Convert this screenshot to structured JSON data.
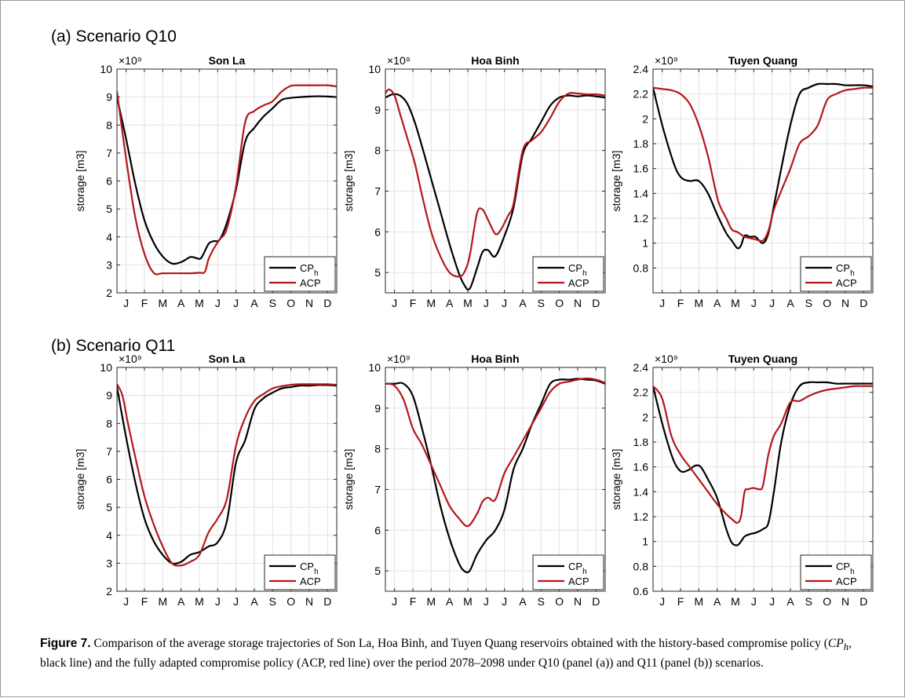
{
  "panels": [
    {
      "label": "(a) Scenario Q10"
    },
    {
      "label": "(b) Scenario Q11"
    }
  ],
  "colors": {
    "cph": "#000000",
    "acp": "#b3171b",
    "grid": "#e2e2e2",
    "axis": "#262626"
  },
  "caption": {
    "label": "Figure 7.",
    "text": " Comparison of the average storage trajectories of Son La, Hoa Binh, and Tuyen Quang reservoirs obtained with the history-based compromise policy (",
    "policy_main": "CP",
    "policy_sub": "h",
    "text_2": ", black line) and the fully adapted compromise policy (ACP, red line) over the period 2078–2098 under Q10 (panel (a)) and Q11 (panel (b)) scenarios."
  },
  "chart_data": [
    {
      "type": "line",
      "panel": "(a) Scenario Q10",
      "title": "Son La",
      "ylabel": "storage [m3]",
      "y_exponent": "×10⁹",
      "ylim": [
        2,
        10
      ],
      "yticks": [
        2,
        3,
        4,
        5,
        6,
        7,
        8,
        9,
        10
      ],
      "ytick_labels": [
        "2",
        "3",
        "4",
        "5",
        "6",
        "7",
        "8",
        "9",
        "10"
      ],
      "xlim": [
        0,
        12
      ],
      "xticks": [
        "J",
        "F",
        "M",
        "A",
        "M",
        "J",
        "J",
        "A",
        "S",
        "O",
        "N",
        "D"
      ],
      "grid": true,
      "legend": "bottom-right",
      "series": [
        {
          "name": "CP_h",
          "label_main": "CP",
          "label_sub": "h",
          "color": "#000000",
          "x": [
            0,
            0.5,
            1,
            1.5,
            2,
            2.5,
            3,
            3.5,
            4,
            4.3,
            4.6,
            5,
            5.3,
            5.6,
            6,
            6.5,
            7,
            7.5,
            8,
            8.5,
            9,
            9.5,
            10,
            10.5,
            11,
            11.5,
            12
          ],
          "y": [
            9.0,
            7.5,
            5.9,
            4.6,
            3.8,
            3.3,
            3.05,
            3.1,
            3.28,
            3.25,
            3.25,
            3.75,
            3.85,
            3.9,
            4.5,
            5.7,
            7.4,
            7.9,
            8.3,
            8.6,
            8.9,
            8.97,
            9.0,
            9.02,
            9.03,
            9.02,
            9.0
          ]
        },
        {
          "name": "ACP",
          "label_main": "ACP",
          "label_sub": "",
          "color": "#b3171b",
          "x": [
            0,
            0.5,
            1,
            1.5,
            2,
            2.5,
            3,
            3.5,
            4,
            4.5,
            4.8,
            5,
            5.3,
            5.6,
            6,
            6.5,
            7,
            7.5,
            8,
            8.5,
            9,
            9.5,
            10,
            10.5,
            11,
            11.5,
            12
          ],
          "y": [
            9.2,
            6.8,
            4.7,
            3.4,
            2.72,
            2.7,
            2.7,
            2.7,
            2.7,
            2.72,
            2.75,
            3.2,
            3.6,
            3.9,
            4.3,
            5.8,
            8.1,
            8.5,
            8.7,
            8.85,
            9.2,
            9.4,
            9.42,
            9.42,
            9.42,
            9.42,
            9.38
          ]
        }
      ]
    },
    {
      "type": "line",
      "panel": "(a) Scenario Q10",
      "title": "Hoa Binh",
      "ylabel": "storage [m3]",
      "y_exponent": "×10⁹",
      "ylim": [
        4.5,
        10
      ],
      "yticks": [
        5,
        6,
        7,
        8,
        9,
        10
      ],
      "ytick_labels": [
        "5",
        "6",
        "7",
        "8",
        "9",
        "10"
      ],
      "xlim": [
        0,
        12
      ],
      "xticks": [
        "J",
        "F",
        "M",
        "A",
        "M",
        "J",
        "J",
        "A",
        "S",
        "O",
        "N",
        "D"
      ],
      "grid": true,
      "legend": "bottom-right",
      "series": [
        {
          "name": "CP_h",
          "label_main": "CP",
          "label_sub": "h",
          "color": "#000000",
          "x": [
            0,
            0.4,
            0.8,
            1.2,
            1.6,
            2,
            2.5,
            3,
            3.5,
            4,
            4.3,
            4.6,
            5,
            5.3,
            5.6,
            6,
            6.5,
            7,
            7.5,
            8,
            8.5,
            9,
            9.5,
            10,
            10.5,
            11,
            11.5,
            12
          ],
          "y": [
            9.3,
            9.38,
            9.35,
            9.15,
            8.7,
            8.1,
            7.3,
            6.5,
            5.7,
            5.0,
            4.7,
            4.6,
            5.1,
            5.5,
            5.55,
            5.4,
            5.9,
            6.6,
            7.9,
            8.3,
            8.7,
            9.1,
            9.3,
            9.35,
            9.33,
            9.35,
            9.33,
            9.3
          ]
        },
        {
          "name": "ACP",
          "label_main": "ACP",
          "label_sub": "",
          "color": "#b3171b",
          "x": [
            0,
            0.2,
            0.5,
            0.8,
            1.2,
            1.6,
            2,
            2.5,
            3,
            3.5,
            4,
            4.3,
            4.6,
            5,
            5.3,
            5.6,
            6,
            6.3,
            6.7,
            7,
            7.5,
            8,
            8.5,
            9,
            9.5,
            10,
            10.5,
            11,
            11.5,
            12
          ],
          "y": [
            9.4,
            9.5,
            9.35,
            8.9,
            8.3,
            7.7,
            6.9,
            6.0,
            5.4,
            5.0,
            4.9,
            5.0,
            5.4,
            6.45,
            6.55,
            6.3,
            5.95,
            6.05,
            6.4,
            6.7,
            8.0,
            8.25,
            8.45,
            8.8,
            9.2,
            9.4,
            9.4,
            9.38,
            9.38,
            9.35
          ]
        }
      ]
    },
    {
      "type": "line",
      "panel": "(a) Scenario Q10",
      "title": "Tuyen Quang",
      "ylabel": "storage [m3]",
      "y_exponent": "×10⁹",
      "ylim": [
        0.6,
        2.4
      ],
      "yticks": [
        0.8,
        1.0,
        1.2,
        1.4,
        1.6,
        1.8,
        2.0,
        2.2,
        2.4
      ],
      "ytick_labels": [
        "0.8",
        "1",
        "1.2",
        "1.4",
        "1.6",
        "1.8",
        "2",
        "2.2",
        "2.4"
      ],
      "xlim": [
        0,
        12
      ],
      "xticks": [
        "J",
        "F",
        "M",
        "A",
        "M",
        "J",
        "J",
        "A",
        "S",
        "O",
        "N",
        "D"
      ],
      "grid": true,
      "legend": "bottom-right",
      "series": [
        {
          "name": "CP_h",
          "label_main": "CP",
          "label_sub": "h",
          "color": "#000000",
          "x": [
            0,
            0.5,
            1,
            1.3,
            1.6,
            2,
            2.5,
            3,
            3.5,
            4,
            4.3,
            4.6,
            4.8,
            5,
            5.3,
            5.6,
            6,
            6.3,
            6.6,
            7,
            7.5,
            8,
            8.5,
            9,
            9.5,
            10,
            10.5,
            11,
            11.5,
            12
          ],
          "y": [
            2.25,
            1.95,
            1.7,
            1.58,
            1.52,
            1.5,
            1.5,
            1.4,
            1.23,
            1.08,
            1.02,
            0.96,
            0.98,
            1.06,
            1.05,
            1.05,
            1.0,
            1.08,
            1.3,
            1.6,
            1.95,
            2.2,
            2.25,
            2.28,
            2.28,
            2.28,
            2.27,
            2.27,
            2.27,
            2.26
          ]
        },
        {
          "name": "ACP",
          "label_main": "ACP",
          "label_sub": "",
          "color": "#b3171b",
          "x": [
            0,
            0.5,
            1,
            1.5,
            2,
            2.5,
            3,
            3.3,
            3.6,
            4,
            4.3,
            4.6,
            4.8,
            5,
            5.3,
            5.6,
            6,
            6.3,
            6.6,
            7,
            7.5,
            8,
            8.5,
            9,
            9.5,
            10,
            10.5,
            11,
            11.5,
            12
          ],
          "y": [
            2.25,
            2.24,
            2.23,
            2.2,
            2.12,
            1.95,
            1.7,
            1.5,
            1.32,
            1.2,
            1.11,
            1.09,
            1.07,
            1.05,
            1.04,
            1.03,
            1.02,
            1.1,
            1.27,
            1.42,
            1.6,
            1.8,
            1.86,
            1.95,
            2.15,
            2.2,
            2.23,
            2.24,
            2.25,
            2.25
          ]
        }
      ]
    },
    {
      "type": "line",
      "panel": "(b) Scenario Q11",
      "title": "Son La",
      "ylabel": "storage [m3]",
      "y_exponent": "×10⁹",
      "ylim": [
        2,
        10
      ],
      "yticks": [
        2,
        3,
        4,
        5,
        6,
        7,
        8,
        9,
        10
      ],
      "ytick_labels": [
        "2",
        "3",
        "4",
        "5",
        "6",
        "7",
        "8",
        "9",
        "10"
      ],
      "xlim": [
        0,
        12
      ],
      "xticks": [
        "J",
        "F",
        "M",
        "A",
        "M",
        "J",
        "J",
        "A",
        "S",
        "O",
        "N",
        "D"
      ],
      "grid": true,
      "legend": "bottom-right",
      "series": [
        {
          "name": "CP_h",
          "label_main": "CP",
          "label_sub": "h",
          "color": "#000000",
          "x": [
            0,
            0.5,
            1,
            1.5,
            2,
            2.5,
            3,
            3.5,
            4,
            4.5,
            5,
            5.5,
            6,
            6.5,
            7,
            7.5,
            8,
            8.5,
            9,
            9.5,
            10,
            10.5,
            11,
            11.5,
            12
          ],
          "y": [
            9.3,
            7.5,
            5.9,
            4.6,
            3.8,
            3.3,
            3.0,
            3.05,
            3.3,
            3.4,
            3.6,
            3.75,
            4.5,
            6.6,
            7.4,
            8.5,
            8.9,
            9.1,
            9.25,
            9.3,
            9.35,
            9.35,
            9.37,
            9.37,
            9.35
          ]
        },
        {
          "name": "ACP",
          "label_main": "ACP",
          "label_sub": "",
          "color": "#b3171b",
          "x": [
            0,
            0.3,
            0.6,
            1,
            1.5,
            2,
            2.5,
            3,
            3.5,
            4,
            4.5,
            5,
            5.5,
            6,
            6.5,
            7,
            7.5,
            8,
            8.5,
            9,
            9.5,
            10,
            10.5,
            11,
            11.5,
            12
          ],
          "y": [
            9.4,
            9.0,
            8.0,
            6.8,
            5.4,
            4.4,
            3.6,
            3.0,
            2.92,
            3.05,
            3.3,
            4.1,
            4.6,
            5.3,
            7.2,
            8.2,
            8.8,
            9.05,
            9.25,
            9.33,
            9.38,
            9.4,
            9.4,
            9.4,
            9.4,
            9.38
          ]
        }
      ]
    },
    {
      "type": "line",
      "panel": "(b) Scenario Q11",
      "title": "Hoa Binh",
      "ylabel": "storage [m3]",
      "y_exponent": "×10⁹",
      "ylim": [
        4.5,
        10
      ],
      "yticks": [
        5,
        6,
        7,
        8,
        9,
        10
      ],
      "ytick_labels": [
        "5",
        "6",
        "7",
        "8",
        "9",
        "10"
      ],
      "xlim": [
        0,
        12
      ],
      "xticks": [
        "J",
        "F",
        "M",
        "A",
        "M",
        "J",
        "J",
        "A",
        "S",
        "O",
        "N",
        "D"
      ],
      "grid": true,
      "legend": "bottom-right",
      "series": [
        {
          "name": "CP_h",
          "label_main": "CP",
          "label_sub": "h",
          "color": "#000000",
          "x": [
            0,
            0.5,
            1,
            1.5,
            2,
            2.5,
            3,
            3.5,
            4,
            4.3,
            4.6,
            5,
            5.5,
            6,
            6.5,
            7,
            7.5,
            8,
            8.5,
            9,
            9.5,
            10,
            10.5,
            11,
            11.5,
            12
          ],
          "y": [
            9.6,
            9.6,
            9.6,
            9.3,
            8.5,
            7.6,
            6.6,
            5.8,
            5.2,
            5.0,
            5.0,
            5.4,
            5.75,
            6.0,
            6.5,
            7.5,
            8.0,
            8.6,
            9.1,
            9.6,
            9.7,
            9.7,
            9.72,
            9.7,
            9.68,
            9.6
          ]
        },
        {
          "name": "ACP",
          "label_main": "ACP",
          "label_sub": "",
          "color": "#b3171b",
          "x": [
            0,
            0.5,
            1,
            1.5,
            2,
            2.5,
            3,
            3.5,
            4,
            4.5,
            5,
            5.3,
            5.6,
            6,
            6.5,
            7,
            7.5,
            8,
            8.5,
            9,
            9.5,
            10,
            10.5,
            11,
            11.5,
            12
          ],
          "y": [
            9.6,
            9.55,
            9.2,
            8.5,
            8.1,
            7.6,
            7.1,
            6.6,
            6.3,
            6.1,
            6.4,
            6.7,
            6.8,
            6.75,
            7.4,
            7.8,
            8.2,
            8.6,
            9.0,
            9.4,
            9.6,
            9.65,
            9.7,
            9.73,
            9.7,
            9.62
          ]
        }
      ]
    },
    {
      "type": "line",
      "panel": "(b) Scenario Q11",
      "title": "Tuyen Quang",
      "ylabel": "storage [m3]",
      "y_exponent": "×10⁹",
      "ylim": [
        0.6,
        2.4
      ],
      "yticks": [
        0.6,
        0.8,
        1.0,
        1.2,
        1.4,
        1.6,
        1.8,
        2.0,
        2.2,
        2.4
      ],
      "ytick_labels": [
        "0.6",
        "0.8",
        "1",
        "1.2",
        "1.4",
        "1.6",
        "1.8",
        "2",
        "2.2",
        "2.4"
      ],
      "xlim": [
        0,
        12
      ],
      "xticks": [
        "J",
        "F",
        "M",
        "A",
        "M",
        "J",
        "J",
        "A",
        "S",
        "O",
        "N",
        "D"
      ],
      "grid": true,
      "legend": "bottom-right",
      "series": [
        {
          "name": "CP_h",
          "label_main": "CP",
          "label_sub": "h",
          "color": "#000000",
          "x": [
            0,
            0.5,
            1,
            1.3,
            1.6,
            2,
            2.3,
            2.6,
            3,
            3.5,
            4,
            4.3,
            4.6,
            4.8,
            5,
            5.3,
            5.6,
            6,
            6.3,
            6.6,
            7,
            7.5,
            8,
            8.5,
            9,
            9.5,
            10,
            10.5,
            11,
            11.5,
            12
          ],
          "y": [
            2.25,
            1.95,
            1.7,
            1.6,
            1.56,
            1.58,
            1.61,
            1.6,
            1.5,
            1.35,
            1.1,
            0.99,
            0.97,
            1.0,
            1.04,
            1.06,
            1.07,
            1.1,
            1.15,
            1.4,
            1.8,
            2.1,
            2.25,
            2.28,
            2.28,
            2.28,
            2.27,
            2.27,
            2.27,
            2.27,
            2.27
          ]
        },
        {
          "name": "ACP",
          "label_main": "ACP",
          "label_sub": "",
          "color": "#b3171b",
          "x": [
            0,
            0.5,
            1,
            1.5,
            2,
            2.5,
            3,
            3.5,
            4,
            4.3,
            4.6,
            4.8,
            5,
            5.2,
            5.5,
            5.8,
            6,
            6.3,
            6.6,
            7,
            7.5,
            8,
            8.5,
            9,
            9.5,
            10,
            10.5,
            11,
            11.5,
            12
          ],
          "y": [
            2.25,
            2.15,
            1.85,
            1.7,
            1.6,
            1.5,
            1.4,
            1.3,
            1.22,
            1.18,
            1.15,
            1.2,
            1.4,
            1.42,
            1.43,
            1.42,
            1.45,
            1.7,
            1.85,
            1.95,
            2.12,
            2.13,
            2.17,
            2.2,
            2.22,
            2.23,
            2.24,
            2.25,
            2.25,
            2.25
          ]
        }
      ]
    }
  ]
}
